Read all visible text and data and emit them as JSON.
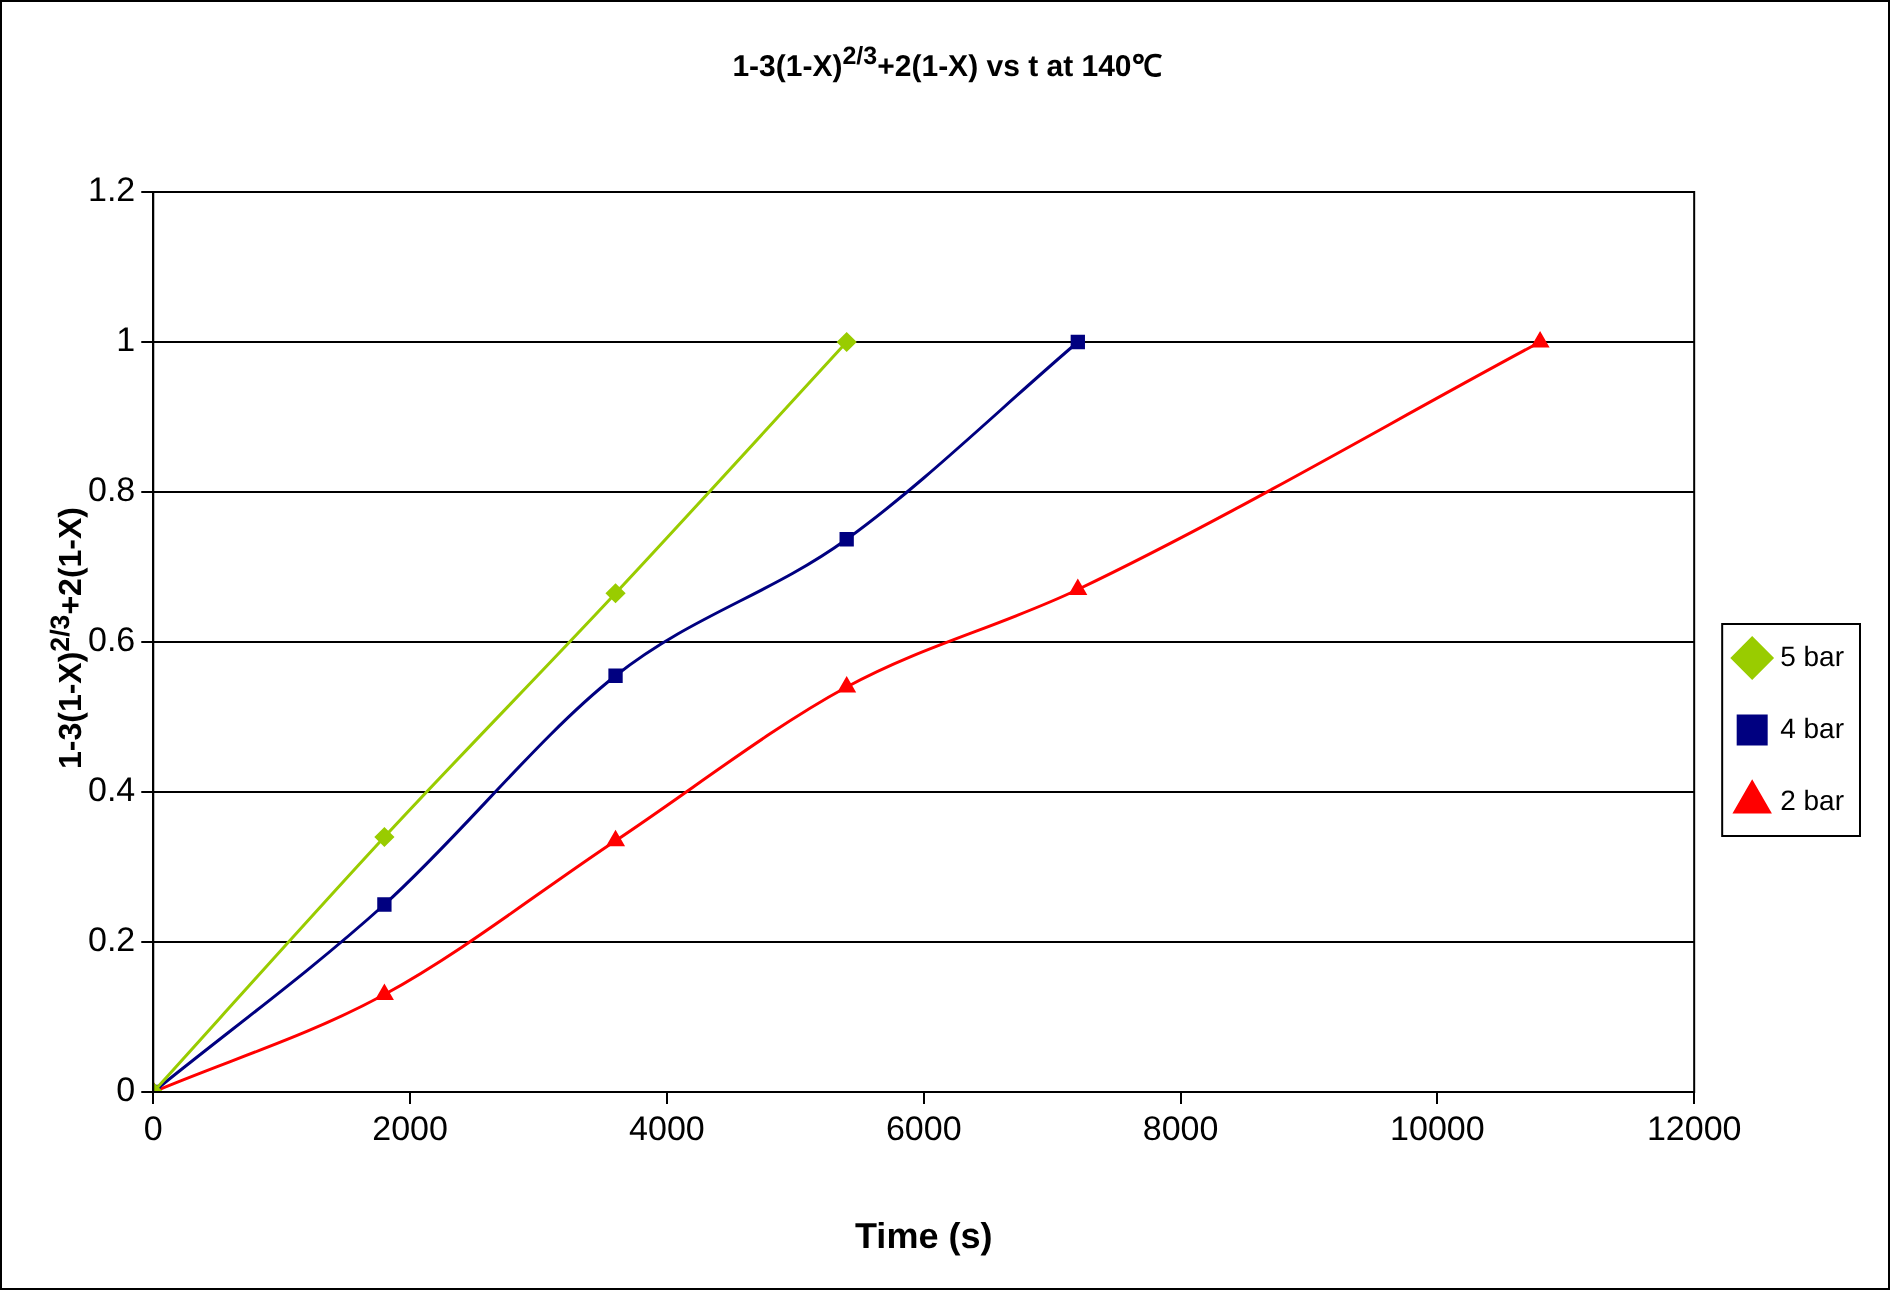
{
  "chart_data": {
    "type": "line",
    "title": "1-3(1-X)$^{2/3}$+2(1-X) vs t at 140℃",
    "xlabel": "Time (s)",
    "ylabel": "1-3(1-X)$^{2/3}$+2(1-X)",
    "xlim": [
      0,
      12000
    ],
    "xticks": [
      0,
      2000,
      4000,
      6000,
      8000,
      10000,
      12000
    ],
    "ylim": [
      0,
      1.2
    ],
    "yticks": [
      0,
      0.2,
      0.4,
      0.6,
      0.8,
      1,
      1.2
    ],
    "grid": "y",
    "legend": "right",
    "line_style": "solid",
    "series": [
      {
        "name": "5 bar",
        "color": "#99cc00",
        "marker": "diamond",
        "x": [
          0,
          1800,
          3600,
          5400
        ],
        "values": [
          0,
          0.34,
          0.665,
          1.0
        ]
      },
      {
        "name": "4 bar",
        "color": "#000080",
        "marker": "square",
        "x": [
          0,
          1800,
          3600,
          5400,
          7200
        ],
        "values": [
          0,
          0.25,
          0.555,
          0.737,
          1.0
        ]
      },
      {
        "name": "2 bar",
        "color": "#ff0000",
        "marker": "triangle",
        "x": [
          0,
          1800,
          3600,
          5400,
          7200,
          10800
        ],
        "values": [
          0,
          0.13,
          0.335,
          0.54,
          0.67,
          1.0
        ]
      }
    ]
  }
}
